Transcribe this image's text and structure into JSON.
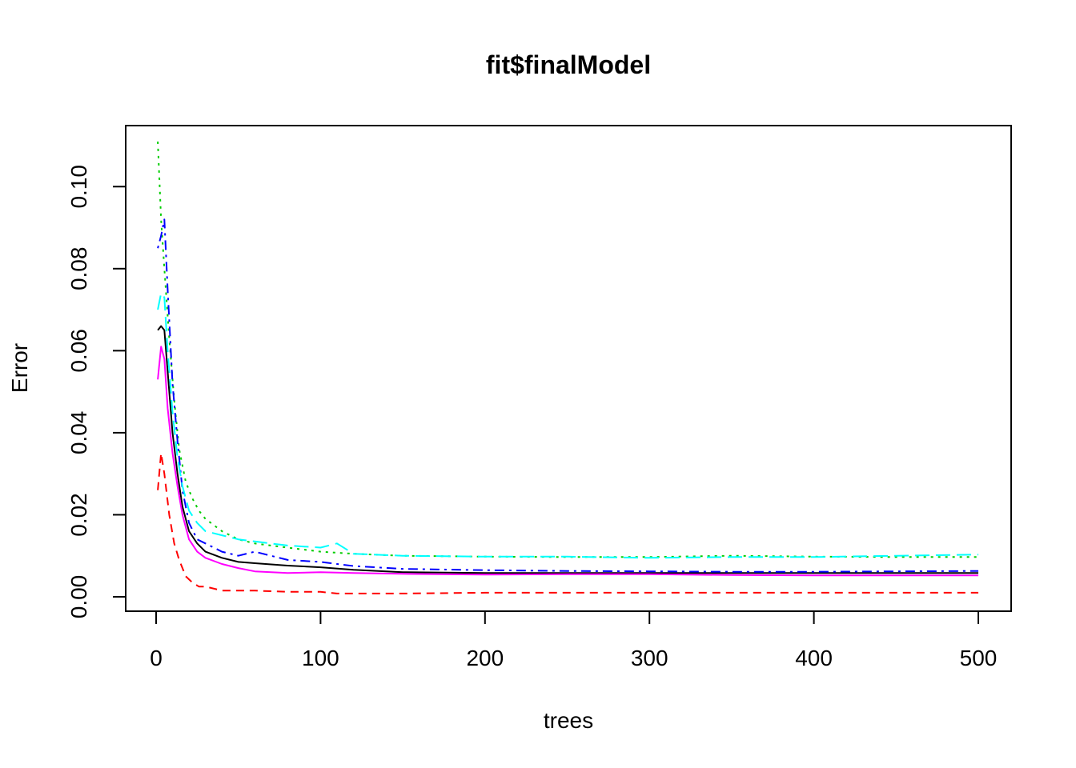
{
  "chart_data": {
    "type": "line",
    "title": "fit$finalModel",
    "xlabel": "trees",
    "ylabel": "Error",
    "xlim": [
      0,
      500
    ],
    "ylim": [
      0,
      0.11
    ],
    "xticks": [
      0,
      100,
      200,
      300,
      400,
      500
    ],
    "xtick_labels": [
      "0",
      "100",
      "200",
      "300",
      "400",
      "500"
    ],
    "yticks": [
      0,
      0.02,
      0.04,
      0.06,
      0.08,
      0.1
    ],
    "ytick_labels": [
      "0.00",
      "0.02",
      "0.04",
      "0.06",
      "0.08",
      "0.10"
    ],
    "grid": false,
    "legend": "none",
    "series": [
      {
        "color": "#000000",
        "line_style": "solid",
        "points": [
          [
            1,
            0.065
          ],
          [
            3,
            0.066
          ],
          [
            5,
            0.065
          ],
          [
            7,
            0.055
          ],
          [
            10,
            0.04
          ],
          [
            13,
            0.03
          ],
          [
            16,
            0.022
          ],
          [
            20,
            0.016
          ],
          [
            25,
            0.013
          ],
          [
            30,
            0.011
          ],
          [
            40,
            0.0095
          ],
          [
            50,
            0.0085
          ],
          [
            60,
            0.0082
          ],
          [
            80,
            0.0076
          ],
          [
            100,
            0.0072
          ],
          [
            120,
            0.0066
          ],
          [
            150,
            0.006
          ],
          [
            200,
            0.0058
          ],
          [
            250,
            0.0058
          ],
          [
            300,
            0.0058
          ],
          [
            350,
            0.0058
          ],
          [
            400,
            0.0058
          ],
          [
            450,
            0.0058
          ],
          [
            500,
            0.0058
          ]
        ]
      },
      {
        "color": "#ff0000",
        "line_style": "dashed",
        "points": [
          [
            1,
            0.026
          ],
          [
            3,
            0.035
          ],
          [
            5,
            0.03
          ],
          [
            8,
            0.02
          ],
          [
            11,
            0.013
          ],
          [
            14,
            0.009
          ],
          [
            18,
            0.005
          ],
          [
            22,
            0.0035
          ],
          [
            26,
            0.0025
          ],
          [
            30,
            0.0025
          ],
          [
            40,
            0.0015
          ],
          [
            60,
            0.0015
          ],
          [
            80,
            0.0012
          ],
          [
            100,
            0.0012
          ],
          [
            110,
            0.0008
          ],
          [
            150,
            0.0008
          ],
          [
            200,
            0.001
          ],
          [
            300,
            0.001
          ],
          [
            400,
            0.001
          ],
          [
            500,
            0.001
          ]
        ]
      },
      {
        "color": "#00cd00",
        "line_style": "dotted",
        "points": [
          [
            1,
            0.111
          ],
          [
            3,
            0.092
          ],
          [
            5,
            0.08
          ],
          [
            8,
            0.063
          ],
          [
            11,
            0.048
          ],
          [
            14,
            0.036
          ],
          [
            18,
            0.028
          ],
          [
            22,
            0.024
          ],
          [
            26,
            0.021
          ],
          [
            30,
            0.019
          ],
          [
            40,
            0.016
          ],
          [
            50,
            0.014
          ],
          [
            60,
            0.013
          ],
          [
            80,
            0.012
          ],
          [
            100,
            0.011
          ],
          [
            120,
            0.0105
          ],
          [
            150,
            0.01
          ],
          [
            200,
            0.0098
          ],
          [
            250,
            0.0097
          ],
          [
            300,
            0.0097
          ],
          [
            350,
            0.01
          ],
          [
            400,
            0.0098
          ],
          [
            450,
            0.0097
          ],
          [
            500,
            0.0097
          ]
        ]
      },
      {
        "color": "#0000ff",
        "line_style": "dotdash",
        "points": [
          [
            1,
            0.085
          ],
          [
            3,
            0.088
          ],
          [
            5,
            0.092
          ],
          [
            7,
            0.075
          ],
          [
            10,
            0.052
          ],
          [
            13,
            0.038
          ],
          [
            16,
            0.026
          ],
          [
            20,
            0.018
          ],
          [
            25,
            0.014
          ],
          [
            30,
            0.013
          ],
          [
            40,
            0.011
          ],
          [
            50,
            0.01
          ],
          [
            60,
            0.011
          ],
          [
            80,
            0.009
          ],
          [
            100,
            0.0085
          ],
          [
            120,
            0.0075
          ],
          [
            150,
            0.0068
          ],
          [
            200,
            0.0065
          ],
          [
            250,
            0.0063
          ],
          [
            300,
            0.0062
          ],
          [
            350,
            0.0061
          ],
          [
            400,
            0.0061
          ],
          [
            450,
            0.0062
          ],
          [
            500,
            0.0063
          ]
        ]
      },
      {
        "color": "#00ffff",
        "line_style": "longdash",
        "points": [
          [
            1,
            0.07
          ],
          [
            3,
            0.074
          ],
          [
            5,
            0.073
          ],
          [
            7,
            0.06
          ],
          [
            10,
            0.045
          ],
          [
            13,
            0.034
          ],
          [
            16,
            0.027
          ],
          [
            20,
            0.021
          ],
          [
            25,
            0.018
          ],
          [
            30,
            0.016
          ],
          [
            40,
            0.015
          ],
          [
            50,
            0.014
          ],
          [
            60,
            0.0135
          ],
          [
            80,
            0.0125
          ],
          [
            100,
            0.012
          ],
          [
            110,
            0.013
          ],
          [
            120,
            0.0105
          ],
          [
            150,
            0.01
          ],
          [
            200,
            0.0098
          ],
          [
            250,
            0.0098
          ],
          [
            300,
            0.0095
          ],
          [
            350,
            0.0097
          ],
          [
            400,
            0.0097
          ],
          [
            450,
            0.01
          ],
          [
            500,
            0.0103
          ]
        ]
      },
      {
        "color": "#ff00ff",
        "line_style": "solid",
        "points": [
          [
            1,
            0.053
          ],
          [
            3,
            0.061
          ],
          [
            5,
            0.058
          ],
          [
            7,
            0.046
          ],
          [
            10,
            0.035
          ],
          [
            13,
            0.027
          ],
          [
            16,
            0.02
          ],
          [
            20,
            0.014
          ],
          [
            25,
            0.011
          ],
          [
            30,
            0.0095
          ],
          [
            40,
            0.008
          ],
          [
            50,
            0.007
          ],
          [
            60,
            0.0062
          ],
          [
            80,
            0.0058
          ],
          [
            100,
            0.006
          ],
          [
            120,
            0.0058
          ],
          [
            150,
            0.0056
          ],
          [
            200,
            0.0054
          ],
          [
            250,
            0.0055
          ],
          [
            300,
            0.0055
          ],
          [
            350,
            0.0053
          ],
          [
            400,
            0.0052
          ],
          [
            450,
            0.0052
          ],
          [
            500,
            0.0052
          ]
        ]
      }
    ]
  }
}
